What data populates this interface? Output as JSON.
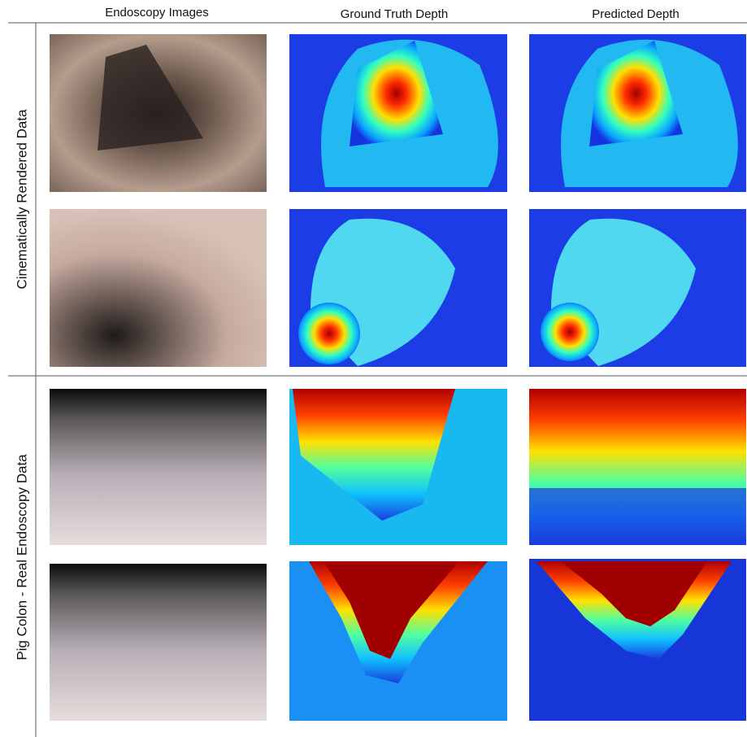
{
  "header": {
    "columns": [
      "Endoscopy Images",
      "Ground Truth Depth",
      "Predicted Depth"
    ]
  },
  "rows": [
    {
      "label": "Cinematically Rendered Data"
    },
    {
      "label": "Pig Colon - Real Endoscopy Data"
    }
  ]
}
